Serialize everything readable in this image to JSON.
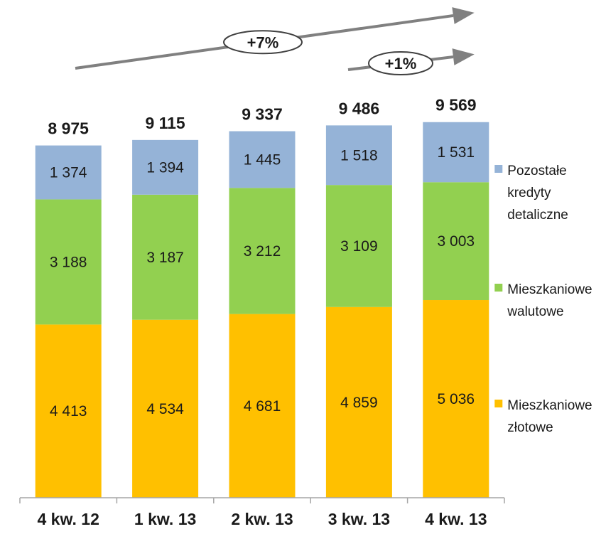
{
  "chart_data": {
    "type": "bar",
    "stacked": true,
    "categories": [
      "4 kw. 12",
      "1 kw. 13",
      "2 kw. 13",
      "3 kw. 13",
      "4 kw. 13"
    ],
    "series": [
      {
        "name": "Mieszkaniowe złotowe",
        "values": [
          4413,
          4534,
          4681,
          4859,
          5036
        ],
        "labels": [
          "4 413",
          "4 534",
          "4 681",
          "4 859",
          "5 036"
        ],
        "color": "#FFC000"
      },
      {
        "name": "Mieszkaniowe walutowe",
        "values": [
          3188,
          3187,
          3212,
          3109,
          3003
        ],
        "labels": [
          "3 188",
          "3 187",
          "3 212",
          "3 109",
          "3 003"
        ],
        "color": "#92D050"
      },
      {
        "name": "Pozostałe kredyty detaliczne",
        "values": [
          1374,
          1394,
          1445,
          1518,
          1531
        ],
        "labels": [
          "1 374",
          "1 394",
          "1 445",
          "1 518",
          "1 531"
        ],
        "color": "#95B3D7"
      }
    ],
    "totals": [
      8975,
      9115,
      9337,
      9486,
      9569
    ],
    "total_labels": [
      "8 975",
      "9 115",
      "9 337",
      "9 486",
      "9 569"
    ],
    "legend": {
      "placement": "right",
      "entries": [
        {
          "lines": [
            "Pozostałe",
            "kredyty",
            "detaliczne"
          ],
          "color": "#95B3D7"
        },
        {
          "lines": [
            "Mieszkaniowe",
            "walutowe"
          ],
          "color": "#92D050"
        },
        {
          "lines": [
            "Mieszkaniowe",
            "złotowe"
          ],
          "color": "#FFC000"
        }
      ]
    },
    "annotations": [
      {
        "text": "+7%",
        "from_category": "4 kw. 12",
        "to_category": "4 kw. 13"
      },
      {
        "text": "+1%",
        "from_category": "3 kw. 13",
        "to_category": "4 kw. 13"
      }
    ],
    "arrow_color": "#808080",
    "grid": false
  }
}
